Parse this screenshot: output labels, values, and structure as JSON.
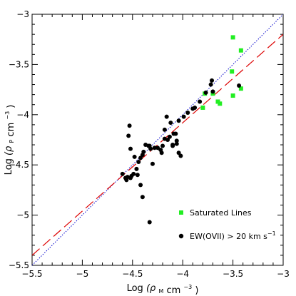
{
  "chart_data": {
    "type": "scatter",
    "xlabel_main": "Log",
    "xlabel_rho": "(ρ",
    "xlabel_sub": "M",
    "xlabel_tail": "cm",
    "xlabel_exp": "−3",
    "xlabel_close": ")",
    "ylabel_main": "Log",
    "ylabel_rho": "(ρ",
    "ylabel_sub": "P",
    "ylabel_tail": "cm",
    "ylabel_exp": "−3",
    "ylabel_close": ")",
    "xlim": [
      -5.5,
      -3.0
    ],
    "ylim": [
      -5.5,
      -3.0
    ],
    "xticks": [
      -5.5,
      -5,
      -4.5,
      -4,
      -3.5,
      -3
    ],
    "yticks": [
      -5.5,
      -5,
      -4.5,
      -4,
      -3.5,
      -3
    ],
    "xtick_labels": [
      "−5.5",
      "−5",
      "−4.5",
      "−4",
      "−3.5",
      "−3"
    ],
    "ytick_labels": [
      "−5.5",
      "−5",
      "−4.5",
      "−4",
      "−3.5",
      "−3"
    ],
    "grid": false,
    "legend_position": "bottom-right",
    "lines": [
      {
        "style": "dotted",
        "color": "#0000cc",
        "x": [
          -5.5,
          -3.0
        ],
        "y": [
          -5.5,
          -3.0
        ]
      },
      {
        "style": "dashed",
        "color": "#dd0000",
        "x": [
          -5.5,
          -3.0
        ],
        "y": [
          -5.4,
          -3.2
        ]
      }
    ],
    "series": [
      {
        "name": "Saturated Lines",
        "marker": "square",
        "color": "#22ee22",
        "x": [
          -3.5,
          -3.42,
          -3.51,
          -3.5,
          -3.42,
          -3.78,
          -3.7,
          -3.65,
          -3.63,
          -3.8
        ],
        "y": [
          -3.23,
          -3.36,
          -3.57,
          -3.81,
          -3.74,
          -3.79,
          -3.79,
          -3.87,
          -3.89,
          -3.93
        ]
      },
      {
        "name": "EW(OVII) > 20 km s",
        "name_exp": "−1",
        "marker": "circle",
        "color": "#000000",
        "x": [
          -3.44,
          -3.71,
          -3.72,
          -3.7,
          -3.77,
          -3.83,
          -3.88,
          -3.9,
          -3.95,
          -3.99,
          -4.04,
          -4.07,
          -4.09,
          -4.13,
          -4.15,
          -4.18,
          -4.2,
          -4.22,
          -4.25,
          -4.28,
          -4.32,
          -4.34,
          -4.37,
          -4.39,
          -4.4,
          -4.42,
          -4.44,
          -4.46,
          -4.49,
          -4.51,
          -4.52,
          -4.55,
          -4.56,
          -4.57,
          -4.6,
          -4.53,
          -4.54,
          -4.52,
          -4.48,
          -4.45,
          -4.42,
          -4.33,
          -4.1,
          -4.06,
          -4.04,
          -4.02,
          -4.1,
          -4.12,
          -4.16,
          -4.18,
          -4.21,
          -4.3,
          -4.33,
          -4.4,
          -4.06
        ],
        "y": [
          -3.71,
          -3.66,
          -3.7,
          -3.77,
          -3.78,
          -3.87,
          -3.93,
          -3.94,
          -3.98,
          -4.02,
          -4.06,
          -4.19,
          -4.19,
          -4.22,
          -4.25,
          -4.24,
          -4.31,
          -4.35,
          -4.33,
          -4.33,
          -4.34,
          -4.31,
          -4.3,
          -4.37,
          -4.4,
          -4.43,
          -4.47,
          -4.54,
          -4.59,
          -4.61,
          -4.63,
          -4.62,
          -4.65,
          -4.63,
          -4.59,
          -4.11,
          -4.21,
          -4.34,
          -4.42,
          -4.6,
          -4.7,
          -5.07,
          -4.3,
          -4.29,
          -4.38,
          -4.41,
          -4.31,
          -4.08,
          -4.02,
          -4.15,
          -4.38,
          -4.49,
          -4.31,
          -4.82,
          -4.26
        ]
      }
    ]
  }
}
